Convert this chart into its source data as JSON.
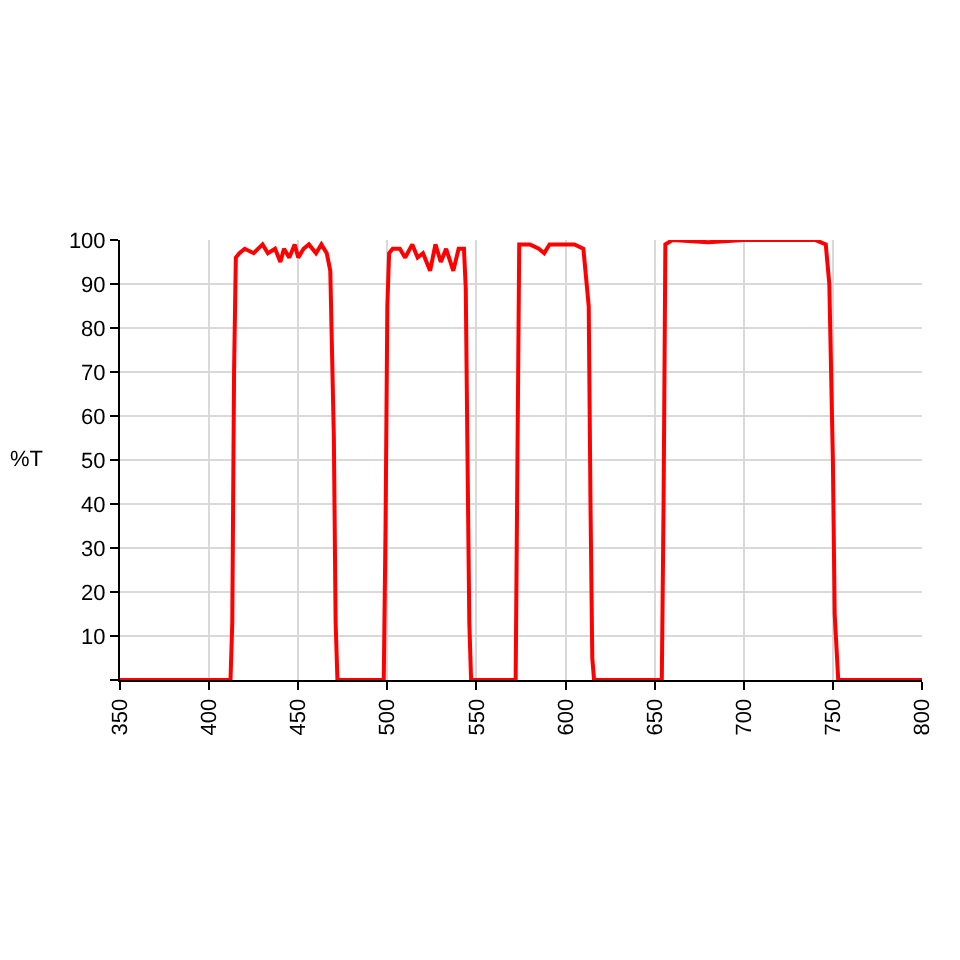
{
  "chart_data": {
    "type": "line",
    "ylabel": "%T",
    "xlim": [
      350,
      800
    ],
    "xticks": [
      350,
      400,
      450,
      500,
      550,
      600,
      650,
      700,
      750,
      800
    ],
    "ylim": [
      0,
      100
    ],
    "yticks": [
      {
        "value": 0,
        "label": null
      },
      10,
      20,
      30,
      40,
      50,
      60,
      70,
      80,
      90,
      100
    ],
    "grid": true,
    "marker": "none",
    "line_style": "solid",
    "series": [
      {
        "color": "#ff0000",
        "x": [
          350,
          412,
          413,
          414,
          415,
          417,
          420,
          425,
          430,
          433,
          437,
          440,
          442,
          445,
          448,
          450,
          453,
          456,
          460,
          463,
          466,
          468,
          470,
          471,
          472,
          498,
          499,
          500,
          501,
          503,
          507,
          510,
          514,
          517,
          520,
          524,
          527,
          530,
          533,
          537,
          540,
          543,
          544,
          545,
          546,
          547,
          572,
          573,
          574,
          580,
          585,
          588,
          591,
          596,
          600,
          605,
          610,
          613,
          614,
          615,
          616,
          654,
          655,
          656,
          660,
          680,
          700,
          720,
          740,
          746,
          748,
          750,
          751,
          753,
          800
        ],
        "values": [
          0,
          0,
          13,
          70,
          96,
          97,
          98,
          97,
          99,
          97,
          98,
          95,
          98,
          96,
          99,
          96,
          98,
          99,
          97,
          99,
          97,
          93,
          55,
          13,
          0,
          0,
          35,
          85,
          97,
          98,
          98,
          96,
          99,
          96,
          97,
          93,
          99,
          95,
          98,
          93,
          98,
          98,
          89,
          50,
          13,
          0,
          0,
          50,
          99,
          99,
          98,
          97,
          99,
          99,
          99,
          99,
          98,
          85,
          40,
          5,
          0,
          0,
          40,
          99,
          100,
          99.5,
          100,
          100,
          100,
          99,
          90,
          50,
          15,
          0,
          0
        ]
      }
    ]
  }
}
